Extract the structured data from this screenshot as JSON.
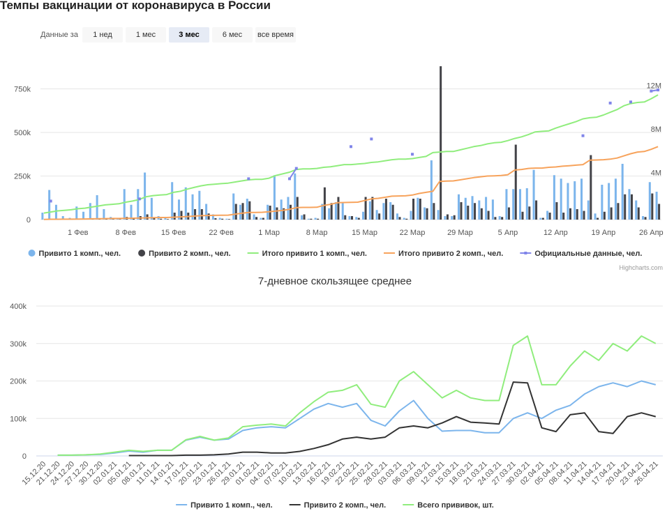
{
  "header": {
    "title": "Темпы вакцинации от коронавируса в России"
  },
  "range_selector": {
    "label": "Данные за",
    "buttons": [
      "1 нед",
      "1 мес",
      "3 мес",
      "6 мес",
      "все время"
    ],
    "selected": 2
  },
  "chart_data": [
    {
      "type": "combo",
      "categories": [
        null,
        null,
        null,
        null,
        null,
        "1 Фев",
        null,
        null,
        null,
        null,
        null,
        null,
        "8 Фев",
        null,
        null,
        null,
        null,
        null,
        null,
        "15 Фев",
        null,
        null,
        null,
        null,
        null,
        null,
        "22 Фев",
        null,
        null,
        null,
        null,
        null,
        null,
        "1 Мар",
        null,
        null,
        null,
        null,
        null,
        null,
        "8 Мар",
        null,
        null,
        null,
        null,
        null,
        null,
        "15 Мар",
        null,
        null,
        null,
        null,
        null,
        null,
        "22 Мар",
        null,
        null,
        null,
        null,
        null,
        null,
        "29 Мар",
        null,
        null,
        null,
        null,
        null,
        null,
        "5 Апр",
        null,
        null,
        null,
        null,
        null,
        null,
        "12 Апр",
        null,
        null,
        null,
        null,
        null,
        null,
        "19 Апр",
        null,
        null,
        null,
        null,
        null,
        null,
        "26 Апр",
        null
      ],
      "ylim": [
        0,
        900000
      ],
      "yticks": [
        0,
        {
          "value": 250000,
          "label": "250k"
        },
        {
          "value": 500000,
          "label": "500k"
        },
        {
          "value": 750000,
          "label": "750k"
        }
      ],
      "y2lim": [
        0,
        14400000
      ],
      "y2ticks": [
        {
          "value": 4000000,
          "label": "4M"
        },
        {
          "value": 8000000,
          "label": "8M"
        },
        {
          "value": 12000000,
          "label": "12M"
        }
      ],
      "grid": true,
      "credits": "Highcharts.com",
      "series": [
        {
          "name": "Привито 1 комп., чел.",
          "type": "bar",
          "color": "#7cb5ec",
          "values": [
            40000,
            170000,
            85000,
            20000,
            10000,
            75000,
            45000,
            95000,
            140000,
            60000,
            15000,
            5000,
            175000,
            85000,
            175000,
            270000,
            125000,
            20000,
            10000,
            215000,
            115000,
            185000,
            145000,
            165000,
            90000,
            30000,
            10000,
            5000,
            150000,
            85000,
            120000,
            30000,
            10000,
            85000,
            255000,
            115000,
            130000,
            265000,
            25000,
            5000,
            10000,
            90000,
            65000,
            100000,
            95000,
            20000,
            15000,
            45000,
            105000,
            55000,
            95000,
            100000,
            35000,
            10000,
            50000,
            125000,
            70000,
            340000,
            55000,
            20000,
            20000,
            145000,
            125000,
            135000,
            110000,
            130000,
            115000,
            20000,
            175000,
            175000,
            175000,
            180000,
            285000,
            10000,
            50000,
            255000,
            235000,
            210000,
            220000,
            235000,
            110000,
            35000,
            200000,
            210000,
            235000,
            320000,
            175000,
            110000,
            20000,
            215000,
            160000
          ]
        },
        {
          "name": "Привито 2 комп., чел.",
          "type": "bar",
          "color": "#434348",
          "values": [
            0,
            0,
            0,
            0,
            0,
            2000,
            3000,
            5000,
            5000,
            3000,
            2000,
            2000,
            15000,
            10000,
            20000,
            30000,
            10000,
            5000,
            3000,
            40000,
            50000,
            40000,
            60000,
            60000,
            35000,
            8000,
            5000,
            3000,
            90000,
            95000,
            105000,
            15000,
            10000,
            80000,
            70000,
            65000,
            85000,
            130000,
            30000,
            5000,
            5000,
            185000,
            95000,
            130000,
            25000,
            20000,
            10000,
            130000,
            130000,
            35000,
            120000,
            85000,
            15000,
            5000,
            120000,
            120000,
            65000,
            95000,
            880000,
            30000,
            25000,
            100000,
            80000,
            95000,
            65000,
            50000,
            15000,
            15000,
            70000,
            430000,
            45000,
            75000,
            110000,
            10000,
            40000,
            100000,
            40000,
            65000,
            60000,
            50000,
            370000,
            10000,
            45000,
            70000,
            95000,
            145000,
            145000,
            70000,
            15000,
            150000,
            90000
          ]
        },
        {
          "name": "Итого привито 1 комп., чел.",
          "type": "line",
          "axis": "y2",
          "color": "#90ed7d",
          "values": [
            600000,
            700000,
            800000,
            850000,
            900000,
            1000000,
            1050000,
            1150000,
            1250000,
            1350000,
            1400000,
            1450000,
            1600000,
            1700000,
            1850000,
            2100000,
            2200000,
            2250000,
            2300000,
            2500000,
            2600000,
            2800000,
            2950000,
            3100000,
            3200000,
            3250000,
            3300000,
            3350000,
            3450000,
            3550000,
            3650000,
            3700000,
            3700000,
            3800000,
            4050000,
            4200000,
            4350000,
            4600000,
            4650000,
            4650000,
            4700000,
            4800000,
            4850000,
            4950000,
            5050000,
            5050000,
            5100000,
            5150000,
            5250000,
            5300000,
            5400000,
            5500000,
            5550000,
            5550000,
            5600000,
            5700000,
            5800000,
            6150000,
            6200000,
            6250000,
            6250000,
            6400000,
            6550000,
            6700000,
            6800000,
            6950000,
            7050000,
            7100000,
            7250000,
            7450000,
            7600000,
            7800000,
            8050000,
            8100000,
            8150000,
            8400000,
            8600000,
            8800000,
            9000000,
            9250000,
            9350000,
            9400000,
            9600000,
            9850000,
            10100000,
            10450000,
            10650000,
            10750000,
            10800000,
            11100000,
            11450000
          ]
        },
        {
          "name": "Итого привито 2 комп., чел.",
          "type": "line",
          "axis": "y2",
          "color": "#f7a35c",
          "values": [
            20000,
            30000,
            30000,
            40000,
            40000,
            50000,
            60000,
            70000,
            80000,
            90000,
            100000,
            100000,
            120000,
            130000,
            140000,
            160000,
            180000,
            190000,
            190000,
            220000,
            250000,
            280000,
            320000,
            360000,
            380000,
            390000,
            400000,
            410000,
            500000,
            580000,
            650000,
            660000,
            670000,
            720000,
            780000,
            850000,
            950000,
            1100000,
            1120000,
            1120000,
            1130000,
            1300000,
            1400000,
            1550000,
            1570000,
            1580000,
            1600000,
            1750000,
            1900000,
            1950000,
            2050000,
            2150000,
            2170000,
            2180000,
            2250000,
            2400000,
            2500000,
            2600000,
            3500000,
            3530000,
            3550000,
            3650000,
            3750000,
            3850000,
            3930000,
            4000000,
            4020000,
            4050000,
            4120000,
            4550000,
            4600000,
            4700000,
            4730000,
            4730000,
            4800000,
            4830000,
            4900000,
            4950000,
            5000000,
            5050000,
            5450000,
            5470000,
            5500000,
            5550000,
            5650000,
            5850000,
            6050000,
            6200000,
            6250000,
            6450000,
            6700000
          ]
        },
        {
          "name": "Официальные данные, чел.",
          "type": "line",
          "axis": "y2",
          "color": "#8085e9",
          "marker": true,
          "values": [
            null,
            1700000,
            null,
            null,
            null,
            null,
            null,
            null,
            null,
            null,
            null,
            null,
            null,
            null,
            1900000,
            null,
            null,
            null,
            null,
            null,
            null,
            null,
            null,
            null,
            null,
            null,
            null,
            null,
            null,
            null,
            3750000,
            null,
            null,
            null,
            null,
            null,
            3750000,
            4700000,
            null,
            null,
            null,
            null,
            null,
            null,
            null,
            6700000,
            null,
            null,
            7400000,
            null,
            null,
            null,
            null,
            null,
            6000000,
            null,
            null,
            null,
            null,
            null,
            null,
            null,
            null,
            null,
            null,
            null,
            null,
            null,
            null,
            null,
            null,
            null,
            null,
            null,
            null,
            null,
            null,
            null,
            null,
            7700000,
            null,
            null,
            null,
            10700000,
            null,
            null,
            10800000,
            null,
            null,
            11800000,
            11900000
          ]
        }
      ]
    },
    {
      "type": "line",
      "title": "7-дневное скользящее среднее",
      "categories": [
        "15.12.20",
        "21.12.20",
        "24.12.20",
        "27.12.20",
        "30.12.20",
        "02.01.21",
        "05.01.21",
        "08.01.21",
        "11.01.21",
        "14.01.21",
        "17.01.21",
        "20.01.21",
        "23.01.21",
        "26.01.21",
        "29.01.21",
        "01.02.21",
        "04.02.21",
        "07.02.21",
        "10.02.21",
        "13.02.21",
        "16.02.21",
        "19.02.21",
        "22.02.21",
        "25.02.21",
        "28.02.21",
        "03.03.21",
        "06.03.21",
        "09.03.21",
        "12.03.21",
        "15.03.21",
        "18.03.21",
        "21.03.21",
        "24.03.21",
        "27.03.21",
        "30.03.21",
        "02.04.21",
        "05.04.21",
        "08.04.21",
        "11.04.21",
        "14.04.21",
        "17.04.21",
        "20.04.21",
        "23.04.21",
        "26.04.21"
      ],
      "ylim": [
        0,
        400000
      ],
      "yticks": [
        0,
        {
          "value": 100000,
          "label": "100k"
        },
        {
          "value": 200000,
          "label": "200k"
        },
        {
          "value": 300000,
          "label": "300k"
        },
        {
          "value": 400000,
          "label": "400k"
        }
      ],
      "grid": true,
      "series": [
        {
          "name": "Привито 1 комп., чел.",
          "color": "#7cb5ec",
          "values": [
            null,
            2000,
            2000,
            3000,
            4000,
            8000,
            13000,
            10000,
            15000,
            15000,
            42000,
            50000,
            42000,
            45000,
            68000,
            75000,
            78000,
            75000,
            100000,
            125000,
            140000,
            130000,
            140000,
            95000,
            80000,
            120000,
            148000,
            100000,
            66000,
            68000,
            68000,
            62000,
            62000,
            100000,
            115000,
            100000,
            122000,
            135000,
            165000,
            185000,
            195000,
            185000,
            200000,
            190000
          ]
        },
        {
          "name": "Привито 2 комп., чел.",
          "color": "#333333",
          "values": [
            null,
            null,
            null,
            null,
            null,
            null,
            1000,
            1000,
            1000,
            1000,
            2000,
            2000,
            3000,
            5000,
            10000,
            10000,
            8000,
            8000,
            12000,
            20000,
            30000,
            45000,
            50000,
            45000,
            50000,
            75000,
            80000,
            75000,
            88000,
            105000,
            90000,
            88000,
            85000,
            197000,
            195000,
            75000,
            65000,
            110000,
            115000,
            65000,
            60000,
            105000,
            115000,
            105000
          ]
        },
        {
          "name": "Всего прививок, шт.",
          "color": "#90ed7d",
          "values": [
            null,
            2000,
            2000,
            3000,
            5000,
            10000,
            15000,
            12000,
            15000,
            15000,
            43000,
            52000,
            42000,
            48000,
            78000,
            82000,
            85000,
            80000,
            115000,
            145000,
            170000,
            175000,
            190000,
            138000,
            130000,
            200000,
            225000,
            190000,
            155000,
            175000,
            155000,
            148000,
            148000,
            295000,
            320000,
            190000,
            190000,
            240000,
            280000,
            255000,
            300000,
            280000,
            320000,
            300000
          ]
        }
      ]
    }
  ]
}
